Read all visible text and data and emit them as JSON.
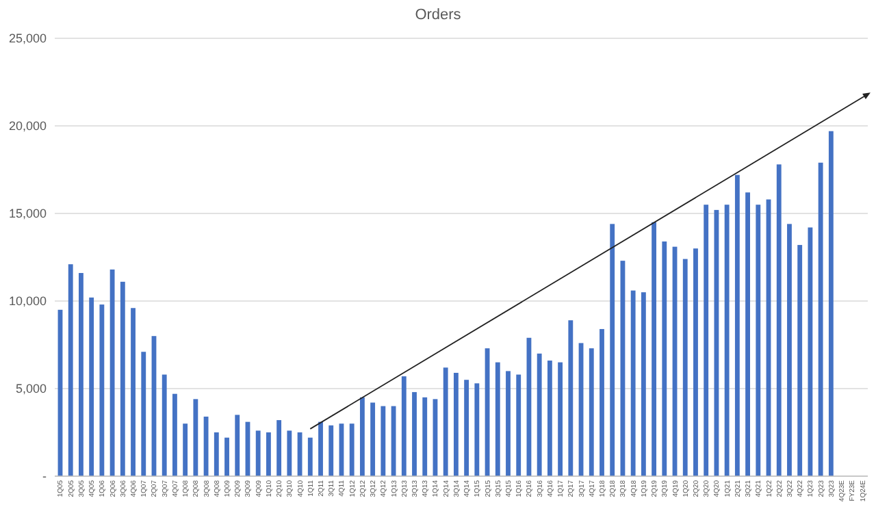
{
  "chart_data": {
    "type": "bar",
    "title": "Orders",
    "categories": [
      "1Q05",
      "2Q05",
      "3Q05",
      "4Q05",
      "1Q06",
      "2Q06",
      "3Q06",
      "4Q06",
      "1Q07",
      "2Q07",
      "3Q07",
      "4Q07",
      "1Q08",
      "2Q08",
      "3Q08",
      "4Q08",
      "1Q09",
      "2Q09",
      "3Q09",
      "4Q09",
      "1Q10",
      "2Q10",
      "3Q10",
      "4Q10",
      "1Q11",
      "2Q11",
      "3Q11",
      "4Q11",
      "1Q12",
      "2Q12",
      "3Q12",
      "4Q12",
      "1Q13",
      "2Q13",
      "3Q13",
      "4Q13",
      "1Q14",
      "2Q14",
      "3Q14",
      "4Q14",
      "1Q15",
      "2Q15",
      "3Q15",
      "4Q15",
      "1Q16",
      "2Q16",
      "3Q16",
      "4Q16",
      "1Q17",
      "2Q17",
      "3Q17",
      "4Q17",
      "1Q18",
      "2Q18",
      "3Q18",
      "4Q18",
      "1Q19",
      "2Q19",
      "3Q19",
      "4Q19",
      "1Q20",
      "2Q20",
      "3Q20",
      "4Q20",
      "1Q21",
      "2Q21",
      "3Q21",
      "4Q21",
      "1Q22",
      "2Q22",
      "3Q22",
      "4Q22",
      "1Q23",
      "2Q23",
      "3Q23",
      "4Q23E",
      "FY23E",
      "1Q24E"
    ],
    "values": [
      9500,
      12100,
      11600,
      10200,
      9800,
      11800,
      11100,
      9600,
      7100,
      8000,
      5800,
      4700,
      3000,
      4400,
      3400,
      2500,
      2200,
      3500,
      3100,
      2600,
      2500,
      3200,
      2600,
      2500,
      2200,
      3100,
      2900,
      3000,
      3000,
      4500,
      4200,
      4000,
      4000,
      5700,
      4800,
      4500,
      4400,
      6200,
      5900,
      5500,
      5300,
      7300,
      6500,
      6000,
      5800,
      7900,
      7000,
      6600,
      6500,
      8900,
      7600,
      7300,
      8400,
      14400,
      12300,
      10600,
      10500,
      14500,
      13400,
      13100,
      12400,
      13000,
      15500,
      15200,
      15500,
      17200,
      16200,
      15500,
      15800,
      17800,
      14400,
      13200,
      14200,
      17900,
      19700,
      null,
      null,
      null
    ],
    "color": "#4472c4",
    "ylim": [
      0,
      25000
    ],
    "yticks": [
      {
        "value": 0,
        "label": "-"
      },
      {
        "value": 5000,
        "label": "5,000"
      },
      {
        "value": 10000,
        "label": "10,000"
      },
      {
        "value": 15000,
        "label": "15,000"
      },
      {
        "value": 20000,
        "label": "20,000"
      },
      {
        "value": 25000,
        "label": "25,000"
      }
    ],
    "grid": true
  }
}
